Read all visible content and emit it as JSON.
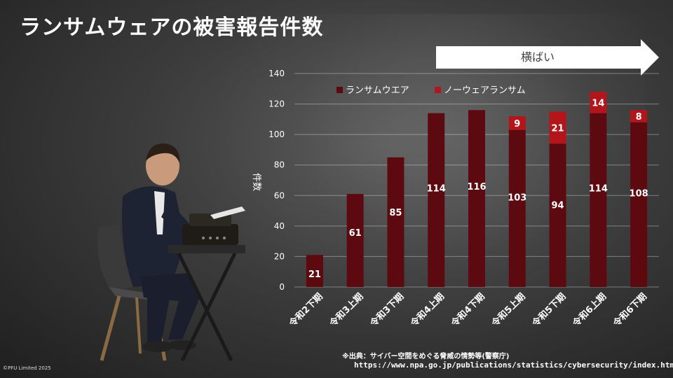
{
  "slide": {
    "title": "ランサムウェアの被害報告件数",
    "trend_label": "横ばい",
    "source_line": "※出典：サイバー空間をめぐる脅威の情勢等(警察庁)",
    "source_url": "https://www.npa.go.jp/publications/statistics/cybersecurity/index.html",
    "copyright": "©PFU Limited 2025"
  },
  "colors": {
    "ransomware": "#5c0a10",
    "noware": "#b4151b",
    "arrow": "#ffffff",
    "gridline": "rgba(255,255,255,0.35)",
    "text": "#ffffff"
  },
  "chart_data": {
    "type": "bar",
    "stacked": true,
    "ylabel": "件数",
    "ylim": [
      0,
      140
    ],
    "yticks": [
      0,
      20,
      40,
      60,
      80,
      100,
      120,
      140
    ],
    "legend_position": "top",
    "grid": true,
    "categories": [
      "令和2下期",
      "令和3上期",
      "令和3下期",
      "令和4上期",
      "令和4下期",
      "令和5上期",
      "令和5下期",
      "令和6上期",
      "令和6下期"
    ],
    "series": [
      {
        "name": "ランサムウエア",
        "values": [
          21,
          61,
          85,
          114,
          116,
          103,
          94,
          114,
          108
        ]
      },
      {
        "name": "ノーウェアランサム",
        "values": [
          0,
          0,
          0,
          0,
          0,
          9,
          21,
          14,
          8
        ]
      }
    ]
  }
}
